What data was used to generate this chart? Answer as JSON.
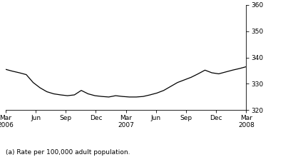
{
  "title": "",
  "footnote": "(a) Rate per 100,000 adult population.",
  "line_color": "#000000",
  "background_color": "#ffffff",
  "ylim": [
    320,
    360
  ],
  "yticks": [
    320,
    330,
    340,
    350,
    360
  ],
  "x_tick_labels": [
    "Mar\n2006",
    "Jun",
    "Sep",
    "Dec",
    "Mar\n2007",
    "Jun",
    "Sep",
    "Dec",
    "Mar\n2008"
  ],
  "x_tick_positions": [
    0,
    3,
    6,
    9,
    12,
    15,
    18,
    21,
    24
  ],
  "values": [
    335.5,
    334.8,
    334.2,
    333.5,
    330.5,
    328.5,
    327.0,
    326.2,
    325.8,
    325.5,
    325.8,
    327.5,
    326.2,
    325.5,
    325.2,
    325.0,
    325.5,
    325.2,
    325.0,
    325.0,
    325.2,
    325.8,
    326.5,
    327.5,
    329.0,
    330.5,
    331.5,
    332.5,
    333.8,
    335.2,
    334.2,
    333.8,
    334.5,
    335.2,
    335.8,
    336.5
  ],
  "linewidth": 0.9,
  "tick_labelsize": 6.5,
  "footnote_fontsize": 6.5
}
